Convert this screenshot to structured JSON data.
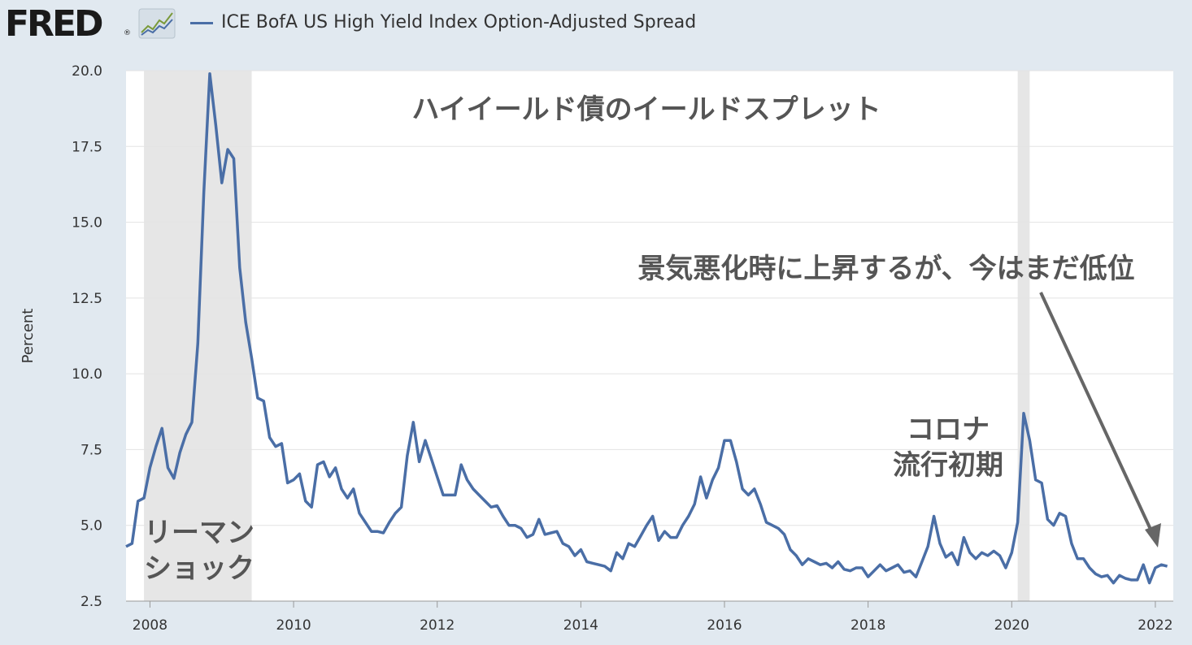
{
  "header": {
    "logo_text": "FRED",
    "logo_reg": "®",
    "legend_label": "ICE BofA US High Yield Index Option-Adjusted Spread"
  },
  "colors": {
    "background": "#e1e9f0",
    "plot_bg": "#ffffff",
    "line": "#4a6ea6",
    "recession": "#e6e6e6"
  },
  "chart_data": {
    "type": "line",
    "title": "ハイイールド債のイールドスプレット",
    "ylabel": "Percent",
    "xlabel": "",
    "ylim": [
      2.5,
      20.0
    ],
    "xlim": [
      "2007-09",
      "2022-04"
    ],
    "grid": true,
    "y_ticks": [
      "2.5",
      "5.0",
      "7.5",
      "10.0",
      "12.5",
      "15.0",
      "17.5",
      "20.0"
    ],
    "x_ticks": [
      "2008",
      "2010",
      "2012",
      "2014",
      "2016",
      "2018",
      "2020",
      "2022"
    ],
    "recessions": [
      [
        "2007-12",
        "2009-06"
      ],
      [
        "2020-02",
        "2020-04"
      ]
    ],
    "annotations": [
      {
        "name": "lehman",
        "lines": [
          "リーマン",
          "ショック"
        ]
      },
      {
        "name": "covid",
        "lines": [
          "コロナ",
          "流行初期"
        ]
      },
      {
        "name": "now",
        "lines": [
          "景気悪化時に上昇するが、今はまだ低位"
        ]
      }
    ],
    "series": [
      {
        "name": "ICE BofA US High Yield Index Option-Adjusted Spread",
        "points": [
          [
            "2007-09",
            4.3
          ],
          [
            "2007-10",
            4.4
          ],
          [
            "2007-11",
            5.8
          ],
          [
            "2007-12",
            5.9
          ],
          [
            "2008-01",
            6.9
          ],
          [
            "2008-02",
            7.6
          ],
          [
            "2008-03",
            8.2
          ],
          [
            "2008-04",
            6.9
          ],
          [
            "2008-05",
            6.55
          ],
          [
            "2008-06",
            7.4
          ],
          [
            "2008-07",
            8.0
          ],
          [
            "2008-08",
            8.4
          ],
          [
            "2008-09",
            11.0
          ],
          [
            "2008-10",
            16.0
          ],
          [
            "2008-11",
            19.9
          ],
          [
            "2008-12",
            18.2
          ],
          [
            "2009-01",
            16.3
          ],
          [
            "2009-02",
            17.4
          ],
          [
            "2009-03",
            17.1
          ],
          [
            "2009-04",
            13.5
          ],
          [
            "2009-05",
            11.7
          ],
          [
            "2009-06",
            10.5
          ],
          [
            "2009-07",
            9.2
          ],
          [
            "2009-08",
            9.1
          ],
          [
            "2009-09",
            7.9
          ],
          [
            "2009-10",
            7.6
          ],
          [
            "2009-11",
            7.7
          ],
          [
            "2009-12",
            6.4
          ],
          [
            "2010-01",
            6.5
          ],
          [
            "2010-02",
            6.7
          ],
          [
            "2010-03",
            5.8
          ],
          [
            "2010-04",
            5.6
          ],
          [
            "2010-05",
            7.0
          ],
          [
            "2010-06",
            7.1
          ],
          [
            "2010-07",
            6.6
          ],
          [
            "2010-08",
            6.9
          ],
          [
            "2010-09",
            6.2
          ],
          [
            "2010-10",
            5.9
          ],
          [
            "2010-11",
            6.2
          ],
          [
            "2010-12",
            5.4
          ],
          [
            "2011-01",
            5.1
          ],
          [
            "2011-02",
            4.8
          ],
          [
            "2011-03",
            4.8
          ],
          [
            "2011-04",
            4.75
          ],
          [
            "2011-05",
            5.1
          ],
          [
            "2011-06",
            5.4
          ],
          [
            "2011-07",
            5.6
          ],
          [
            "2011-08",
            7.3
          ],
          [
            "2011-09",
            8.4
          ],
          [
            "2011-10",
            7.1
          ],
          [
            "2011-11",
            7.8
          ],
          [
            "2011-12",
            7.2
          ],
          [
            "2012-01",
            6.6
          ],
          [
            "2012-02",
            6.0
          ],
          [
            "2012-03",
            6.0
          ],
          [
            "2012-04",
            6.0
          ],
          [
            "2012-05",
            7.0
          ],
          [
            "2012-06",
            6.5
          ],
          [
            "2012-07",
            6.2
          ],
          [
            "2012-08",
            6.0
          ],
          [
            "2012-09",
            5.8
          ],
          [
            "2012-10",
            5.6
          ],
          [
            "2012-11",
            5.65
          ],
          [
            "2012-12",
            5.3
          ],
          [
            "2013-01",
            5.0
          ],
          [
            "2013-02",
            5.0
          ],
          [
            "2013-03",
            4.9
          ],
          [
            "2013-04",
            4.6
          ],
          [
            "2013-05",
            4.7
          ],
          [
            "2013-06",
            5.2
          ],
          [
            "2013-07",
            4.7
          ],
          [
            "2013-08",
            4.75
          ],
          [
            "2013-09",
            4.8
          ],
          [
            "2013-10",
            4.4
          ],
          [
            "2013-11",
            4.3
          ],
          [
            "2013-12",
            4.0
          ],
          [
            "2014-01",
            4.2
          ],
          [
            "2014-02",
            3.8
          ],
          [
            "2014-03",
            3.75
          ],
          [
            "2014-04",
            3.7
          ],
          [
            "2014-05",
            3.65
          ],
          [
            "2014-06",
            3.5
          ],
          [
            "2014-07",
            4.1
          ],
          [
            "2014-08",
            3.9
          ],
          [
            "2014-09",
            4.4
          ],
          [
            "2014-10",
            4.3
          ],
          [
            "2014-11",
            4.65
          ],
          [
            "2014-12",
            5.0
          ],
          [
            "2015-01",
            5.3
          ],
          [
            "2015-02",
            4.5
          ],
          [
            "2015-03",
            4.8
          ],
          [
            "2015-04",
            4.6
          ],
          [
            "2015-05",
            4.6
          ],
          [
            "2015-06",
            5.0
          ],
          [
            "2015-07",
            5.3
          ],
          [
            "2015-08",
            5.7
          ],
          [
            "2015-09",
            6.6
          ],
          [
            "2015-10",
            5.9
          ],
          [
            "2015-11",
            6.5
          ],
          [
            "2015-12",
            6.9
          ],
          [
            "2016-01",
            7.8
          ],
          [
            "2016-02",
            7.8
          ],
          [
            "2016-03",
            7.1
          ],
          [
            "2016-04",
            6.2
          ],
          [
            "2016-05",
            6.0
          ],
          [
            "2016-06",
            6.2
          ],
          [
            "2016-07",
            5.7
          ],
          [
            "2016-08",
            5.1
          ],
          [
            "2016-09",
            5.0
          ],
          [
            "2016-10",
            4.9
          ],
          [
            "2016-11",
            4.7
          ],
          [
            "2016-12",
            4.2
          ],
          [
            "2017-01",
            4.0
          ],
          [
            "2017-02",
            3.7
          ],
          [
            "2017-03",
            3.9
          ],
          [
            "2017-04",
            3.8
          ],
          [
            "2017-05",
            3.7
          ],
          [
            "2017-06",
            3.75
          ],
          [
            "2017-07",
            3.6
          ],
          [
            "2017-08",
            3.8
          ],
          [
            "2017-09",
            3.55
          ],
          [
            "2017-10",
            3.5
          ],
          [
            "2017-11",
            3.6
          ],
          [
            "2017-12",
            3.6
          ],
          [
            "2018-01",
            3.3
          ],
          [
            "2018-02",
            3.5
          ],
          [
            "2018-03",
            3.7
          ],
          [
            "2018-04",
            3.5
          ],
          [
            "2018-05",
            3.6
          ],
          [
            "2018-06",
            3.7
          ],
          [
            "2018-07",
            3.45
          ],
          [
            "2018-08",
            3.5
          ],
          [
            "2018-09",
            3.3
          ],
          [
            "2018-10",
            3.8
          ],
          [
            "2018-11",
            4.3
          ],
          [
            "2018-12",
            5.3
          ],
          [
            "2019-01",
            4.4
          ],
          [
            "2019-02",
            3.95
          ],
          [
            "2019-03",
            4.1
          ],
          [
            "2019-04",
            3.7
          ],
          [
            "2019-05",
            4.6
          ],
          [
            "2019-06",
            4.1
          ],
          [
            "2019-07",
            3.9
          ],
          [
            "2019-08",
            4.1
          ],
          [
            "2019-09",
            4.0
          ],
          [
            "2019-10",
            4.15
          ],
          [
            "2019-11",
            4.0
          ],
          [
            "2019-12",
            3.6
          ],
          [
            "2020-01",
            4.1
          ],
          [
            "2020-02",
            5.1
          ],
          [
            "2020-03",
            8.7
          ],
          [
            "2020-04",
            7.8
          ],
          [
            "2020-05",
            6.5
          ],
          [
            "2020-06",
            6.4
          ],
          [
            "2020-07",
            5.2
          ],
          [
            "2020-08",
            5.0
          ],
          [
            "2020-09",
            5.4
          ],
          [
            "2020-10",
            5.3
          ],
          [
            "2020-11",
            4.4
          ],
          [
            "2020-12",
            3.9
          ],
          [
            "2021-01",
            3.9
          ],
          [
            "2021-02",
            3.6
          ],
          [
            "2021-03",
            3.4
          ],
          [
            "2021-04",
            3.3
          ],
          [
            "2021-05",
            3.35
          ],
          [
            "2021-06",
            3.1
          ],
          [
            "2021-07",
            3.35
          ],
          [
            "2021-08",
            3.25
          ],
          [
            "2021-09",
            3.2
          ],
          [
            "2021-10",
            3.2
          ],
          [
            "2021-11",
            3.7
          ],
          [
            "2021-12",
            3.1
          ],
          [
            "2022-01",
            3.6
          ],
          [
            "2022-02",
            3.7
          ],
          [
            "2022-03",
            3.65
          ]
        ]
      }
    ]
  }
}
